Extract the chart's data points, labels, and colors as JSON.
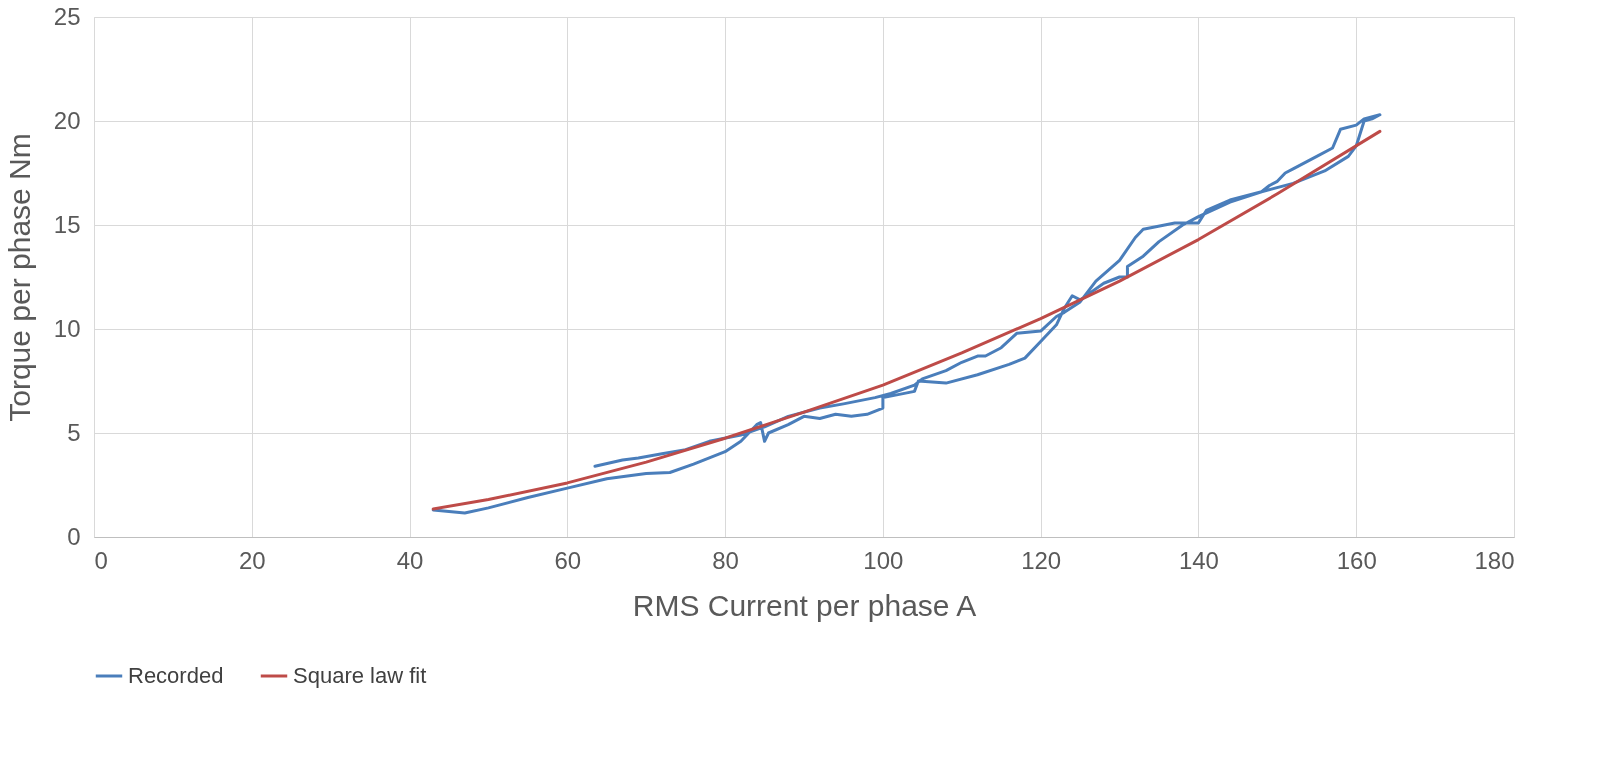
{
  "chart_data": {
    "type": "line",
    "xlabel": "RMS Current per phase A",
    "ylabel": "Torque per phase Nm",
    "xlim": [
      0,
      180
    ],
    "xticks": [
      0,
      20,
      40,
      60,
      80,
      100,
      120,
      140,
      160,
      180
    ],
    "ylim": [
      0,
      25
    ],
    "yticks": [
      0,
      5,
      10,
      15,
      20,
      25
    ],
    "grid": true,
    "legend": "bottom",
    "line_style": "solid",
    "marker": "none",
    "series": [
      {
        "name": "Recorded",
        "color": "#4a7ebb",
        "x": [
          43,
          47,
          50,
          55,
          60,
          65,
          70,
          73,
          76,
          80,
          82,
          84,
          84.5,
          85,
          85.5,
          88,
          90,
          92,
          94,
          96,
          98,
          100,
          100,
          104,
          104.5,
          108,
          112,
          116,
          118,
          120,
          122,
          123,
          124,
          125,
          128,
          130,
          131,
          131,
          133,
          135,
          138,
          140,
          144,
          148,
          152,
          156,
          159,
          160,
          161,
          162,
          163,
          161,
          160,
          158,
          157,
          155,
          152,
          151,
          150,
          149,
          148,
          144,
          141,
          140,
          137,
          133,
          132,
          130,
          127,
          125,
          123,
          122,
          120,
          117,
          115,
          113,
          112,
          110,
          108,
          105,
          104,
          101,
          99,
          95,
          92,
          88,
          85,
          82,
          78,
          75,
          72,
          69,
          67,
          63.5
        ],
        "values": [
          1.3,
          1.15,
          1.4,
          1.9,
          2.35,
          2.8,
          3.05,
          3.1,
          3.5,
          4.1,
          4.6,
          5.4,
          5.5,
          4.6,
          5.0,
          5.4,
          5.8,
          5.7,
          5.9,
          5.8,
          5.9,
          6.2,
          6.7,
          7.0,
          7.5,
          7.4,
          7.8,
          8.3,
          8.6,
          9.4,
          10.2,
          11.0,
          11.6,
          11.4,
          12.2,
          12.5,
          12.5,
          13.0,
          13.5,
          14.2,
          15.0,
          15.4,
          16.1,
          16.6,
          17.0,
          17.6,
          18.3,
          18.8,
          20.0,
          20.1,
          20.3,
          20.1,
          19.8,
          19.6,
          18.7,
          18.3,
          17.7,
          17.5,
          17.1,
          16.9,
          16.6,
          16.2,
          15.7,
          15.1,
          15.1,
          14.8,
          14.4,
          13.3,
          12.3,
          11.3,
          10.8,
          10.6,
          9.9,
          9.8,
          9.1,
          8.7,
          8.7,
          8.4,
          8.0,
          7.6,
          7.3,
          6.9,
          6.7,
          6.4,
          6.2,
          5.8,
          5.3,
          4.9,
          4.6,
          4.2,
          4.0,
          3.8,
          3.7,
          3.4
        ]
      },
      {
        "name": "Square law fit",
        "color": "#be4b48",
        "x": [
          43,
          50,
          60,
          70,
          80,
          90,
          100,
          110,
          120,
          130,
          140,
          150,
          163
        ],
        "values": [
          1.35,
          1.8,
          2.6,
          3.6,
          4.75,
          6.0,
          7.3,
          8.85,
          10.5,
          12.3,
          14.3,
          16.5,
          19.5
        ]
      }
    ]
  }
}
